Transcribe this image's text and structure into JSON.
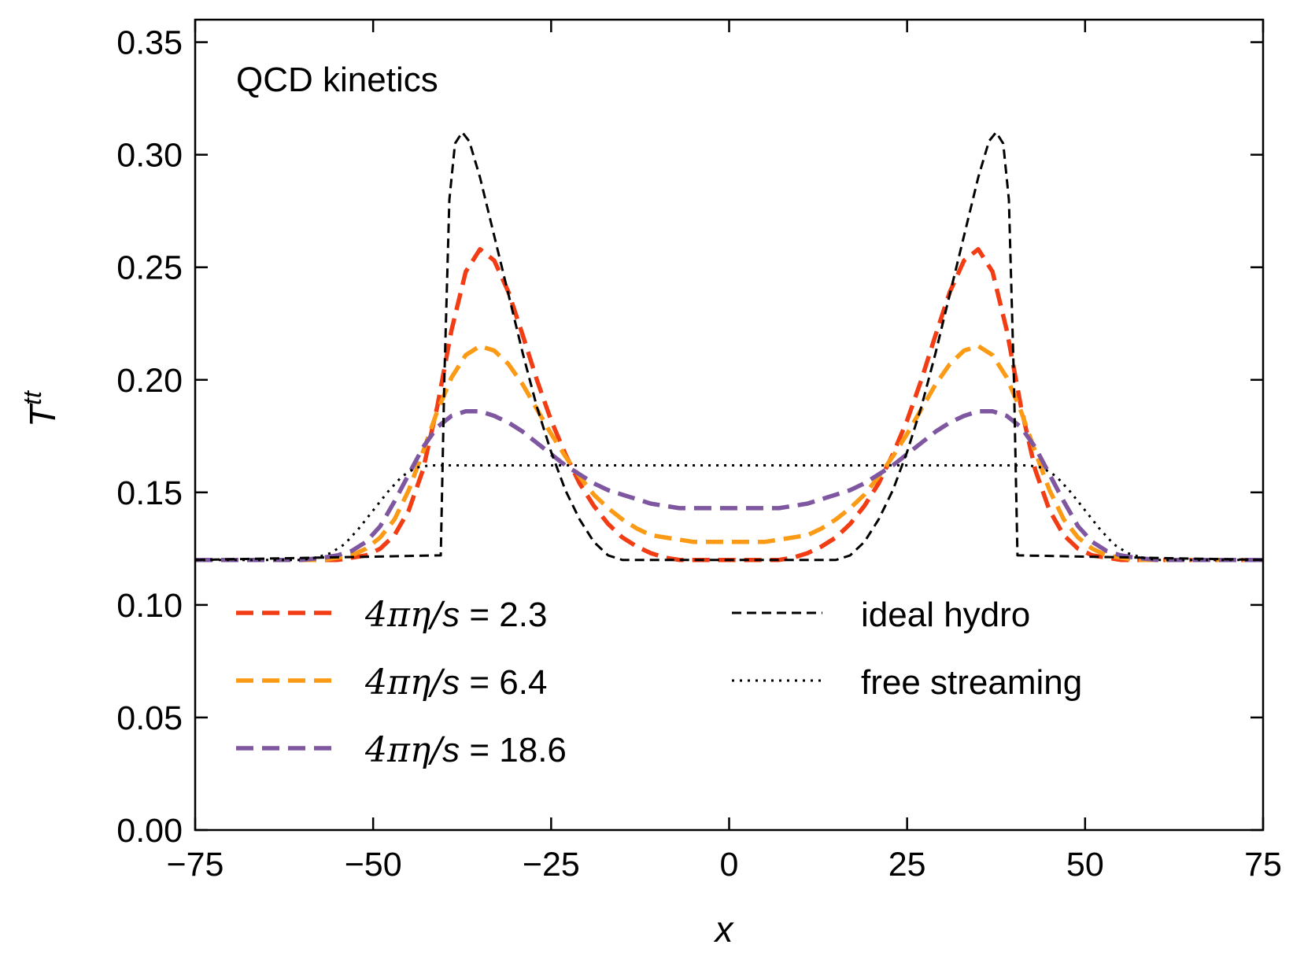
{
  "chart_data": {
    "type": "line",
    "title": "",
    "annotation": "QCD kinetics",
    "xlabel": "x",
    "ylabel_base": "T",
    "ylabel_sup": "tt",
    "xlim": [
      -75,
      75
    ],
    "ylim": [
      0.0,
      0.36
    ],
    "xticks": [
      -75,
      -50,
      -25,
      0,
      25,
      50,
      75
    ],
    "xtick_labels": [
      "−75",
      "−50",
      "−25",
      "0",
      "25",
      "50",
      "75"
    ],
    "yticks": [
      0.0,
      0.05,
      0.1,
      0.15,
      0.2,
      0.25,
      0.3,
      0.35
    ],
    "ytick_labels": [
      "0.00",
      "0.05",
      "0.10",
      "0.15",
      "0.20",
      "0.25",
      "0.30",
      "0.35"
    ],
    "legend_location": "lower",
    "series": [
      {
        "name": "4πη/s = 2.3",
        "legend_prefix": "4πη/",
        "legend_var": "s",
        "legend_value": " = 2.3",
        "color": "#f23c14",
        "style": "dashed-thick",
        "x": [
          -75,
          -60,
          -57,
          -55,
          -53,
          -51,
          -49,
          -47,
          -45,
          -43,
          -41,
          -39,
          -37,
          -35,
          -33,
          -31,
          -29,
          -27,
          -25,
          -23,
          -21,
          -19,
          -17,
          -15,
          -13,
          -11,
          -9,
          -7,
          -5,
          -3,
          -1,
          0,
          1,
          3,
          5,
          7,
          9,
          11,
          13,
          15,
          17,
          19,
          21,
          23,
          25,
          27,
          29,
          31,
          33,
          35,
          37,
          39,
          41,
          43,
          45,
          47,
          49,
          51,
          53,
          55,
          57,
          60,
          75
        ],
        "y": [
          0.12,
          0.12,
          0.12,
          0.12,
          0.121,
          0.122,
          0.125,
          0.131,
          0.142,
          0.16,
          0.188,
          0.222,
          0.248,
          0.258,
          0.253,
          0.239,
          0.22,
          0.2,
          0.182,
          0.167,
          0.154,
          0.144,
          0.136,
          0.13,
          0.126,
          0.123,
          0.121,
          0.12,
          0.12,
          0.12,
          0.12,
          0.12,
          0.12,
          0.12,
          0.12,
          0.12,
          0.121,
          0.123,
          0.126,
          0.13,
          0.136,
          0.144,
          0.154,
          0.167,
          0.182,
          0.2,
          0.22,
          0.239,
          0.253,
          0.258,
          0.248,
          0.222,
          0.188,
          0.16,
          0.142,
          0.131,
          0.125,
          0.122,
          0.121,
          0.12,
          0.12,
          0.12,
          0.12
        ]
      },
      {
        "name": "4πη/s = 6.4",
        "legend_prefix": "4πη/",
        "legend_var": "s",
        "legend_value": " = 6.4",
        "color": "#fb9a14",
        "style": "dashed-thick",
        "x": [
          -75,
          -60,
          -57,
          -55,
          -53,
          -51,
          -49,
          -47,
          -45,
          -43,
          -41,
          -39,
          -37,
          -35,
          -33,
          -31,
          -29,
          -27,
          -25,
          -23,
          -21,
          -19,
          -17,
          -15,
          -13,
          -11,
          -9,
          -7,
          -5,
          -3,
          -1,
          0,
          1,
          3,
          5,
          7,
          9,
          11,
          13,
          15,
          17,
          19,
          21,
          23,
          25,
          27,
          29,
          31,
          33,
          35,
          37,
          39,
          41,
          43,
          45,
          47,
          49,
          51,
          53,
          55,
          57,
          60,
          75
        ],
        "y": [
          0.12,
          0.12,
          0.12,
          0.121,
          0.122,
          0.125,
          0.13,
          0.138,
          0.151,
          0.168,
          0.186,
          0.201,
          0.211,
          0.215,
          0.213,
          0.207,
          0.198,
          0.187,
          0.176,
          0.166,
          0.157,
          0.149,
          0.143,
          0.138,
          0.134,
          0.131,
          0.13,
          0.129,
          0.128,
          0.128,
          0.128,
          0.128,
          0.128,
          0.128,
          0.128,
          0.129,
          0.13,
          0.131,
          0.134,
          0.138,
          0.143,
          0.149,
          0.157,
          0.166,
          0.176,
          0.187,
          0.198,
          0.207,
          0.213,
          0.215,
          0.211,
          0.201,
          0.186,
          0.168,
          0.151,
          0.138,
          0.13,
          0.125,
          0.122,
          0.121,
          0.12,
          0.12,
          0.12
        ]
      },
      {
        "name": "4πη/s = 18.6",
        "legend_prefix": "4πη/",
        "legend_var": "s",
        "legend_value": " = 18.6",
        "color": "#7f57a0",
        "style": "dashed-thick",
        "x": [
          -75,
          -60,
          -57,
          -55,
          -53,
          -51,
          -49,
          -47,
          -45,
          -43,
          -41,
          -39,
          -37,
          -35,
          -33,
          -31,
          -29,
          -27,
          -25,
          -23,
          -21,
          -19,
          -17,
          -15,
          -13,
          -11,
          -9,
          -7,
          -5,
          -3,
          -1,
          0,
          1,
          3,
          5,
          7,
          9,
          11,
          13,
          15,
          17,
          19,
          21,
          23,
          25,
          27,
          29,
          31,
          33,
          35,
          37,
          39,
          41,
          43,
          45,
          47,
          49,
          51,
          53,
          55,
          57,
          60,
          75
        ],
        "y": [
          0.12,
          0.12,
          0.121,
          0.122,
          0.124,
          0.128,
          0.135,
          0.146,
          0.158,
          0.17,
          0.179,
          0.184,
          0.186,
          0.186,
          0.184,
          0.181,
          0.177,
          0.172,
          0.167,
          0.162,
          0.158,
          0.154,
          0.151,
          0.149,
          0.147,
          0.145,
          0.144,
          0.143,
          0.143,
          0.143,
          0.143,
          0.143,
          0.143,
          0.143,
          0.143,
          0.143,
          0.144,
          0.145,
          0.147,
          0.149,
          0.151,
          0.154,
          0.158,
          0.162,
          0.167,
          0.172,
          0.177,
          0.181,
          0.184,
          0.186,
          0.186,
          0.184,
          0.179,
          0.17,
          0.158,
          0.146,
          0.135,
          0.128,
          0.124,
          0.122,
          0.121,
          0.12,
          0.12
        ]
      },
      {
        "name": "ideal hydro",
        "color": "#000000",
        "style": "dashed-thin",
        "x": [
          -75,
          -40.5,
          -40,
          -39.3,
          -38.5,
          -37.5,
          -36.5,
          -35,
          -33,
          -31,
          -29,
          -27,
          -25,
          -23,
          -21,
          -19,
          -17,
          -15,
          -14,
          -13,
          0,
          13,
          14,
          15,
          17,
          19,
          21,
          23,
          25,
          27,
          29,
          31,
          33,
          35,
          36.5,
          37.5,
          38.5,
          39.3,
          40,
          40.5,
          75
        ],
        "y": [
          0.12,
          0.122,
          0.2,
          0.28,
          0.305,
          0.31,
          0.306,
          0.29,
          0.264,
          0.238,
          0.212,
          0.188,
          0.168,
          0.151,
          0.138,
          0.128,
          0.122,
          0.12,
          0.12,
          0.12,
          0.12,
          0.12,
          0.12,
          0.12,
          0.122,
          0.128,
          0.138,
          0.151,
          0.168,
          0.188,
          0.212,
          0.238,
          0.264,
          0.29,
          0.306,
          0.31,
          0.305,
          0.28,
          0.2,
          0.122,
          0.12
        ]
      },
      {
        "name": "free streaming",
        "color": "#000000",
        "style": "dotted",
        "x": [
          -75,
          -60,
          -58,
          -56,
          -54,
          -52,
          -50,
          -48,
          -46,
          -44,
          -42,
          -40,
          -38,
          0,
          38,
          40,
          42,
          44,
          46,
          48,
          50,
          52,
          54,
          56,
          58,
          60,
          75
        ],
        "y": [
          0.12,
          0.12,
          0.121,
          0.123,
          0.127,
          0.134,
          0.142,
          0.15,
          0.157,
          0.161,
          0.162,
          0.162,
          0.162,
          0.162,
          0.162,
          0.162,
          0.162,
          0.161,
          0.157,
          0.15,
          0.142,
          0.134,
          0.127,
          0.123,
          0.121,
          0.12,
          0.12
        ]
      }
    ]
  }
}
